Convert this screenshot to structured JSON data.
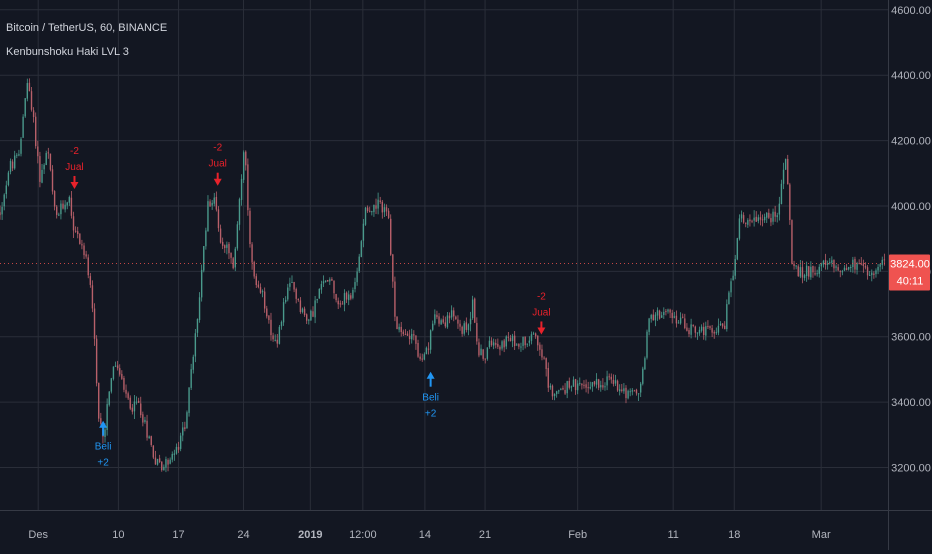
{
  "header": {
    "symbol_line": "Bitcoin / TetherUS, 60, BINANCE",
    "indicator_line": "Kenbunshoku Haki LVL 3"
  },
  "colors": {
    "background": "#131722",
    "grid": "#2a2e39",
    "axis_text": "#b2b5be",
    "up_candle": "#4a9a8c",
    "down_candle": "#b8606a",
    "sell_signal": "#e8222b",
    "buy_signal": "#2196f3",
    "price_tag": "#ef5350"
  },
  "chart_data": {
    "type": "candlestick",
    "title": "",
    "xlabel": "",
    "ylabel": "",
    "ylim": [
      3070,
      4630
    ],
    "y_axis_side": "right",
    "yticks": [
      3200,
      3400,
      3600,
      3800,
      4000,
      4200,
      4400,
      4600
    ],
    "ytick_labels": [
      "3200.00",
      "3400.00",
      "3600.00",
      "3800.00",
      "4000.00",
      "4200.00",
      "4400.00",
      "4600.00"
    ],
    "xlim": [
      0,
      93
    ],
    "xticks": [
      {
        "x": 4.0,
        "label": "Des",
        "bold": false
      },
      {
        "x": 12.4,
        "label": "10",
        "bold": false
      },
      {
        "x": 18.7,
        "label": "17",
        "bold": false
      },
      {
        "x": 25.5,
        "label": "24",
        "bold": false
      },
      {
        "x": 32.5,
        "label": "2019",
        "bold": true
      },
      {
        "x": 38.0,
        "label": "12:00",
        "bold": false
      },
      {
        "x": 44.5,
        "label": "14",
        "bold": false
      },
      {
        "x": 50.8,
        "label": "21",
        "bold": false
      },
      {
        "x": 60.5,
        "label": "Feb",
        "bold": false
      },
      {
        "x": 70.5,
        "label": "11",
        "bold": false
      },
      {
        "x": 76.9,
        "label": "18",
        "bold": false
      },
      {
        "x": 86.0,
        "label": "Mar",
        "bold": false
      }
    ],
    "grid": true,
    "price_path": [
      [
        0,
        3980
      ],
      [
        1,
        4120
      ],
      [
        2,
        4150
      ],
      [
        2.8,
        4390
      ],
      [
        3.6,
        4240
      ],
      [
        4.2,
        4080
      ],
      [
        5,
        4170
      ],
      [
        5.8,
        3960
      ],
      [
        6.6,
        4000
      ],
      [
        7.2,
        4030
      ],
      [
        7.8,
        3920
      ],
      [
        8.5,
        3890
      ],
      [
        9.2,
        3810
      ],
      [
        9.8,
        3640
      ],
      [
        10.3,
        3340
      ],
      [
        10.9,
        3300
      ],
      [
        11.5,
        3460
      ],
      [
        12.2,
        3520
      ],
      [
        13,
        3430
      ],
      [
        13.8,
        3380
      ],
      [
        14.5,
        3400
      ],
      [
        15.3,
        3320
      ],
      [
        16.2,
        3230
      ],
      [
        17,
        3200
      ],
      [
        17.8,
        3230
      ],
      [
        18.6,
        3250
      ],
      [
        19.4,
        3340
      ],
      [
        20.2,
        3530
      ],
      [
        21,
        3750
      ],
      [
        21.8,
        4020
      ],
      [
        22.6,
        4010
      ],
      [
        23.2,
        3870
      ],
      [
        23.8,
        3900
      ],
      [
        24.4,
        3790
      ],
      [
        25,
        4000
      ],
      [
        25.6,
        4180
      ],
      [
        26.2,
        3860
      ],
      [
        26.8,
        3740
      ],
      [
        27.6,
        3720
      ],
      [
        28.4,
        3620
      ],
      [
        29,
        3560
      ],
      [
        29.8,
        3720
      ],
      [
        30.6,
        3760
      ],
      [
        31.4,
        3700
      ],
      [
        32.2,
        3640
      ],
      [
        33,
        3700
      ],
      [
        33.8,
        3760
      ],
      [
        34.6,
        3790
      ],
      [
        35.4,
        3700
      ],
      [
        36.2,
        3720
      ],
      [
        37,
        3730
      ],
      [
        37.5,
        3810
      ],
      [
        38.2,
        4000
      ],
      [
        39,
        3990
      ],
      [
        39.8,
        4000
      ],
      [
        40.6,
        3990
      ],
      [
        41.2,
        3720
      ],
      [
        41.6,
        3620
      ],
      [
        42.4,
        3600
      ],
      [
        43.2,
        3620
      ],
      [
        44.1,
        3510
      ],
      [
        44.9,
        3570
      ],
      [
        45.6,
        3680
      ],
      [
        46.4,
        3640
      ],
      [
        47.2,
        3670
      ],
      [
        48,
        3630
      ],
      [
        48.8,
        3620
      ],
      [
        49.5,
        3700
      ],
      [
        50.2,
        3540
      ],
      [
        51,
        3550
      ],
      [
        51.6,
        3600
      ],
      [
        52.4,
        3580
      ],
      [
        53.2,
        3590
      ],
      [
        54,
        3580
      ],
      [
        55.1,
        3590
      ],
      [
        55.9,
        3620
      ],
      [
        56.7,
        3560
      ],
      [
        57.5,
        3440
      ],
      [
        58.3,
        3430
      ],
      [
        59,
        3440
      ],
      [
        59.8,
        3460
      ],
      [
        60.6,
        3440
      ],
      [
        61.4,
        3450
      ],
      [
        62.2,
        3460
      ],
      [
        63,
        3460
      ],
      [
        63.8,
        3470
      ],
      [
        64.6,
        3450
      ],
      [
        65.4,
        3440
      ],
      [
        66.2,
        3420
      ],
      [
        67.1,
        3440
      ],
      [
        67.9,
        3640
      ],
      [
        68.7,
        3680
      ],
      [
        69.5,
        3670
      ],
      [
        70.3,
        3660
      ],
      [
        71.1,
        3650
      ],
      [
        71.9,
        3630
      ],
      [
        72.7,
        3620
      ],
      [
        73.5,
        3620
      ],
      [
        74.3,
        3610
      ],
      [
        75.1,
        3630
      ],
      [
        75.9,
        3640
      ],
      [
        76.7,
        3790
      ],
      [
        77.5,
        3960
      ],
      [
        78.3,
        3960
      ],
      [
        79.1,
        3960
      ],
      [
        79.9,
        3970
      ],
      [
        80.7,
        3960
      ],
      [
        81.5,
        3990
      ],
      [
        82.2,
        4150
      ],
      [
        82.6,
        4050
      ],
      [
        82.9,
        3830
      ],
      [
        83.7,
        3790
      ],
      [
        84.5,
        3800
      ],
      [
        85.3,
        3810
      ],
      [
        86.1,
        3810
      ],
      [
        86.9,
        3820
      ],
      [
        87.7,
        3810
      ],
      [
        88.5,
        3810
      ],
      [
        89.3,
        3820
      ],
      [
        90.1,
        3810
      ],
      [
        90.9,
        3800
      ],
      [
        91.7,
        3810
      ],
      [
        92.5,
        3824
      ]
    ],
    "signals": [
      {
        "type": "sell",
        "x": 7.8,
        "price": 4055,
        "value_label": "-2",
        "text": "Jual"
      },
      {
        "type": "buy",
        "x": 10.8,
        "price": 3340,
        "value_label": "+2",
        "text": "Beli"
      },
      {
        "type": "sell",
        "x": 22.8,
        "price": 4065,
        "value_label": "-2",
        "text": "Jual"
      },
      {
        "type": "buy",
        "x": 45.1,
        "price": 3490,
        "value_label": "+2",
        "text": "Beli"
      },
      {
        "type": "sell",
        "x": 56.7,
        "price": 3610,
        "value_label": "-2",
        "text": "Jual"
      }
    ],
    "last_price_label": "3824.00",
    "countdown_label": "40:11",
    "last_price": 3824
  }
}
